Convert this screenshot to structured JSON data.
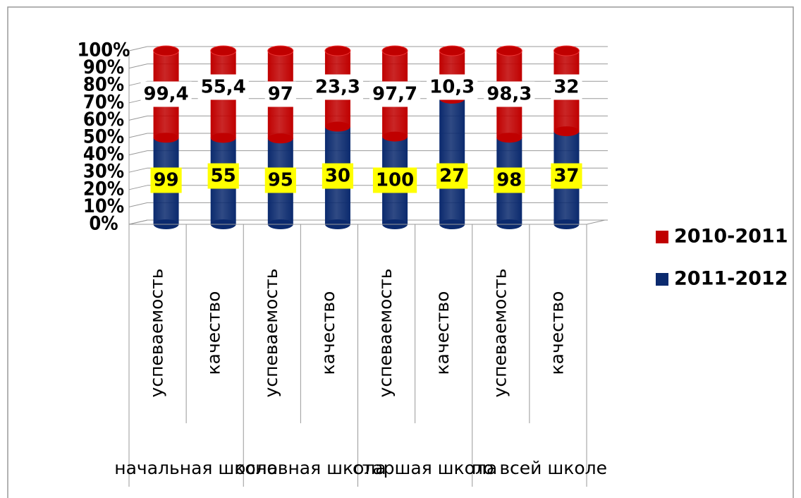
{
  "chart_data": {
    "type": "stacked_bar_100",
    "categories": [
      "успеваемость",
      "качество",
      "успеваемость",
      "качество",
      "успеваемость",
      "качество",
      "успеваемость",
      "качество"
    ],
    "groups": [
      "начальная школа",
      "основная школа",
      "старшая школа",
      "по всей школе"
    ],
    "series": [
      {
        "name": "2011-2012",
        "color": "#0b2a6e",
        "values": [
          99,
          55,
          95,
          30,
          100,
          27,
          98,
          37
        ],
        "label_bg": "#ffff00"
      },
      {
        "name": "2010-2011",
        "color": "#c00000",
        "values": [
          99.4,
          55.4,
          97,
          23.3,
          97.7,
          10.3,
          98.3,
          32
        ],
        "value_labels": [
          "99,4",
          "55,4",
          "97",
          "23,3",
          "97,7",
          "10,3",
          "98,3",
          "32"
        ],
        "label_bg": "#ffffff"
      }
    ],
    "ylim": [
      0,
      100
    ],
    "yticks": [
      {
        "value": 0,
        "label": "0%"
      },
      {
        "value": 10,
        "label": "10%"
      },
      {
        "value": 20,
        "label": "20%"
      },
      {
        "value": 30,
        "label": "30%"
      },
      {
        "value": 40,
        "label": "40%"
      },
      {
        "value": 50,
        "label": "50%"
      },
      {
        "value": 60,
        "label": "60%"
      },
      {
        "value": 70,
        "label": "70%"
      },
      {
        "value": 80,
        "label": "80%"
      },
      {
        "value": 90,
        "label": "90%"
      },
      {
        "value": 100,
        "label": "100%"
      }
    ],
    "grid": true,
    "legend": "right"
  }
}
